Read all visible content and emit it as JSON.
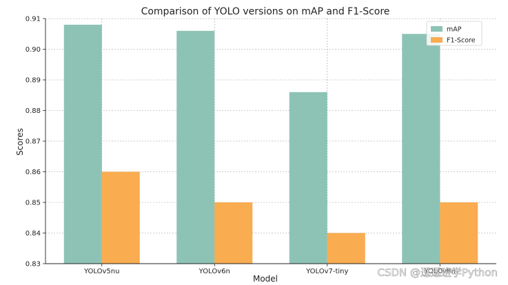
{
  "chart_data": {
    "type": "bar",
    "title": "Comparison of YOLO versions on mAP and F1-Score",
    "xlabel": "Model",
    "ylabel": "Scores",
    "categories": [
      "YOLOv5nu",
      "YOLOv6n",
      "YOLOv7-tiny",
      "YOLOv8n"
    ],
    "series": [
      {
        "name": "mAP",
        "values": [
          0.908,
          0.906,
          0.886,
          0.905
        ],
        "color": "#8dc3b5"
      },
      {
        "name": "F1-Score",
        "values": [
          0.86,
          0.85,
          0.84,
          0.85
        ],
        "color": "#f9ac50"
      }
    ],
    "ylim": [
      0.83,
      0.91
    ],
    "yticks": [
      "0.83",
      "0.84",
      "0.85",
      "0.86",
      "0.87",
      "0.88",
      "0.89",
      "0.90",
      "0.91"
    ],
    "grid": true,
    "legend_position": "top-right"
  },
  "watermark": "CSDN @逗逗班学Python"
}
